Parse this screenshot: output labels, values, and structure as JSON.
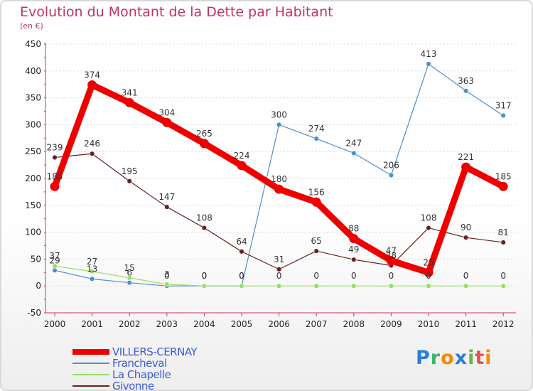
{
  "chart_data": {
    "type": "line",
    "title": "Evolution du Montant de la Dette par Habitant",
    "subtitle": "(en €)",
    "x": [
      "2000",
      "2001",
      "2002",
      "2003",
      "2004",
      "2005",
      "2006",
      "2007",
      "2008",
      "2009",
      "2010",
      "2011",
      "2012"
    ],
    "ylim": [
      -50,
      450
    ],
    "yticks": [
      -50,
      0,
      50,
      100,
      150,
      200,
      250,
      300,
      350,
      400,
      450
    ],
    "series": [
      {
        "name": "Francheval",
        "color": "#4d8fcc",
        "values": [
          29,
          13,
          6,
          0,
          0,
          0,
          300,
          274,
          247,
          206,
          413,
          363,
          317
        ]
      },
      {
        "name": "La Chapelle",
        "color": "#99dd66",
        "values": [
          37,
          27,
          15,
          3,
          0,
          0,
          0,
          0,
          0,
          0,
          0,
          0,
          0
        ]
      },
      {
        "name": "Givonne",
        "color": "#6b1f1f",
        "values": [
          239,
          246,
          195,
          147,
          108,
          64,
          31,
          65,
          49,
          38,
          108,
          90,
          81
        ]
      },
      {
        "name": "VILLERS-CERNAY",
        "color": "#ee0000",
        "values": [
          185,
          374,
          341,
          304,
          265,
          224,
          180,
          156,
          88,
          47,
          25,
          221,
          185
        ]
      }
    ],
    "legend": [
      "VILLERS-CERNAY",
      "Francheval",
      "La Chapelle",
      "Givonne"
    ]
  },
  "logo": {
    "text": "Proxiti",
    "colors": [
      "#2a7fd4",
      "#3cb371",
      "#f28c00",
      "#2a7fd4",
      "#6ab04c",
      "#e5534b",
      "#f28c00"
    ]
  }
}
